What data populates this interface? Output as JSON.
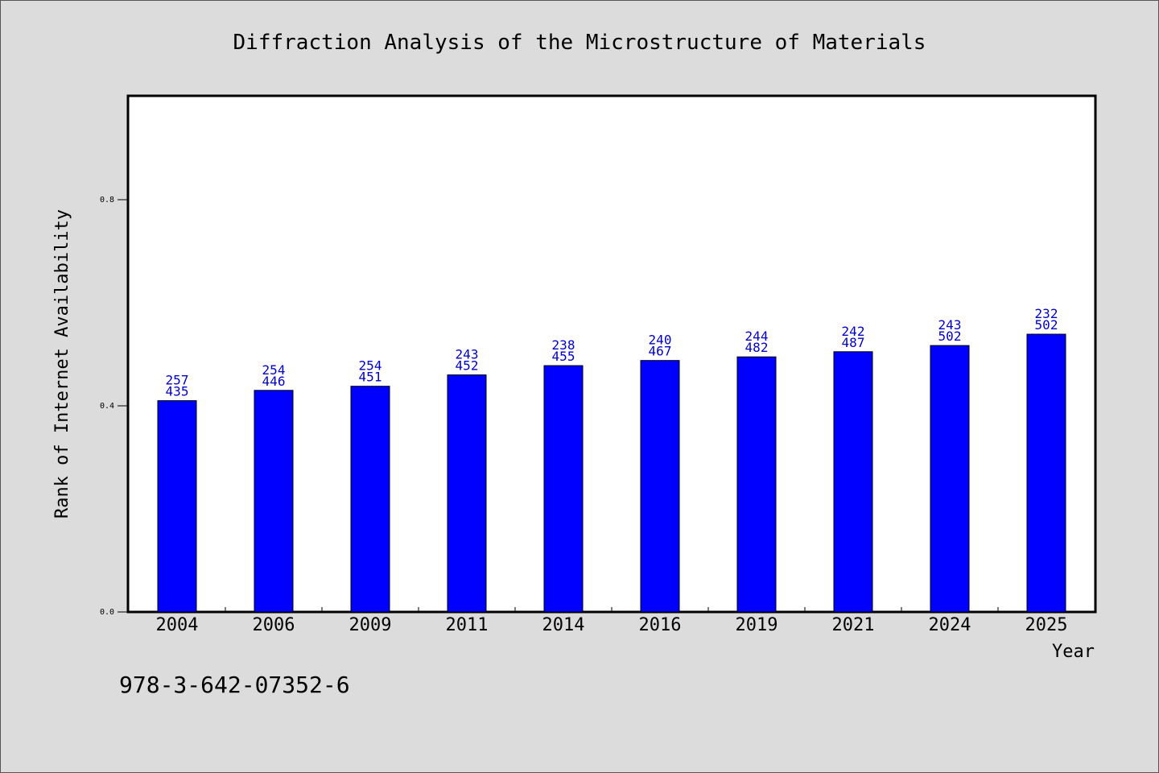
{
  "chart_data": {
    "type": "bar",
    "title": "Diffraction Analysis of the Microstructure of Materials",
    "xlabel": "Year",
    "ylabel": "Rank of Internet Availability",
    "categories": [
      "2004",
      "2006",
      "2009",
      "2011",
      "2014",
      "2016",
      "2019",
      "2021",
      "2024",
      "2025"
    ],
    "values": [
      0.41,
      0.43,
      0.438,
      0.46,
      0.478,
      0.488,
      0.495,
      0.505,
      0.517,
      0.539
    ],
    "labels_top": [
      "257",
      "254",
      "254",
      "243",
      "238",
      "240",
      "244",
      "242",
      "243",
      "232"
    ],
    "labels_bottom": [
      "435",
      "446",
      "451",
      "452",
      "455",
      "467",
      "482",
      "487",
      "502",
      "502"
    ],
    "ylim": [
      0,
      1.0
    ],
    "yticks": [
      "0.0",
      "0.4",
      "0.8"
    ],
    "ytick_values": [
      0.0,
      0.4,
      0.8
    ],
    "grid": false,
    "legend": "none",
    "bar_color": "#0000ff",
    "label_color": "#0000cc"
  },
  "footer": {
    "text": "978-3-642-07352-6"
  }
}
